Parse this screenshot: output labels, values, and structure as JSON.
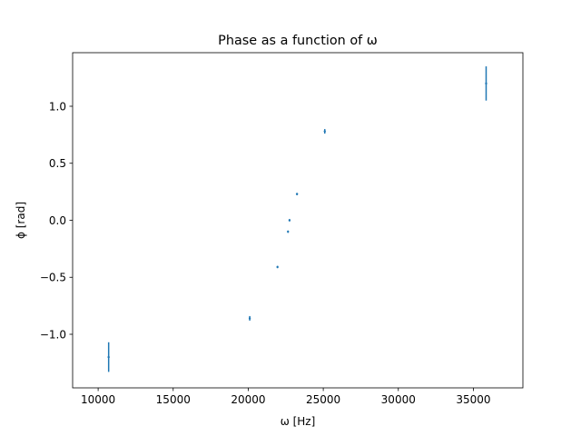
{
  "chart_data": {
    "type": "scatter",
    "title": "Phase as a function of ω",
    "xlabel": "ω [Hz]",
    "ylabel": "ϕ [rad]",
    "xlim": [
      8300,
      38300
    ],
    "ylim": [
      -1.47,
      1.47
    ],
    "xticks": [
      {
        "value": 10000,
        "label": "10000"
      },
      {
        "value": 15000,
        "label": "15000"
      },
      {
        "value": 20000,
        "label": "20000"
      },
      {
        "value": 25000,
        "label": "25000"
      },
      {
        "value": 30000,
        "label": "30000"
      },
      {
        "value": 35000,
        "label": "35000"
      }
    ],
    "yticks": [
      {
        "value": 1.0,
        "label": "1.0"
      },
      {
        "value": 0.5,
        "label": "0.5"
      },
      {
        "value": 0.0,
        "label": "0.0"
      },
      {
        "value": -0.5,
        "label": "−0.5"
      },
      {
        "value": -1.0,
        "label": "−1.0"
      }
    ],
    "grid": false,
    "series": [
      {
        "color": "#1f77b4",
        "points": [
          {
            "x": 10700,
            "y": -1.2,
            "yerr": 0.13
          },
          {
            "x": 20100,
            "y": -0.86,
            "yerr": 0.02
          },
          {
            "x": 21950,
            "y": -0.41,
            "yerr": 0.01
          },
          {
            "x": 22650,
            "y": -0.1,
            "yerr": 0.01
          },
          {
            "x": 22750,
            "y": 0.0,
            "yerr": 0.01
          },
          {
            "x": 23250,
            "y": 0.23,
            "yerr": 0.01
          },
          {
            "x": 25100,
            "y": 0.78,
            "yerr": 0.02
          },
          {
            "x": 35850,
            "y": 1.2,
            "yerr": 0.15
          }
        ]
      }
    ]
  }
}
